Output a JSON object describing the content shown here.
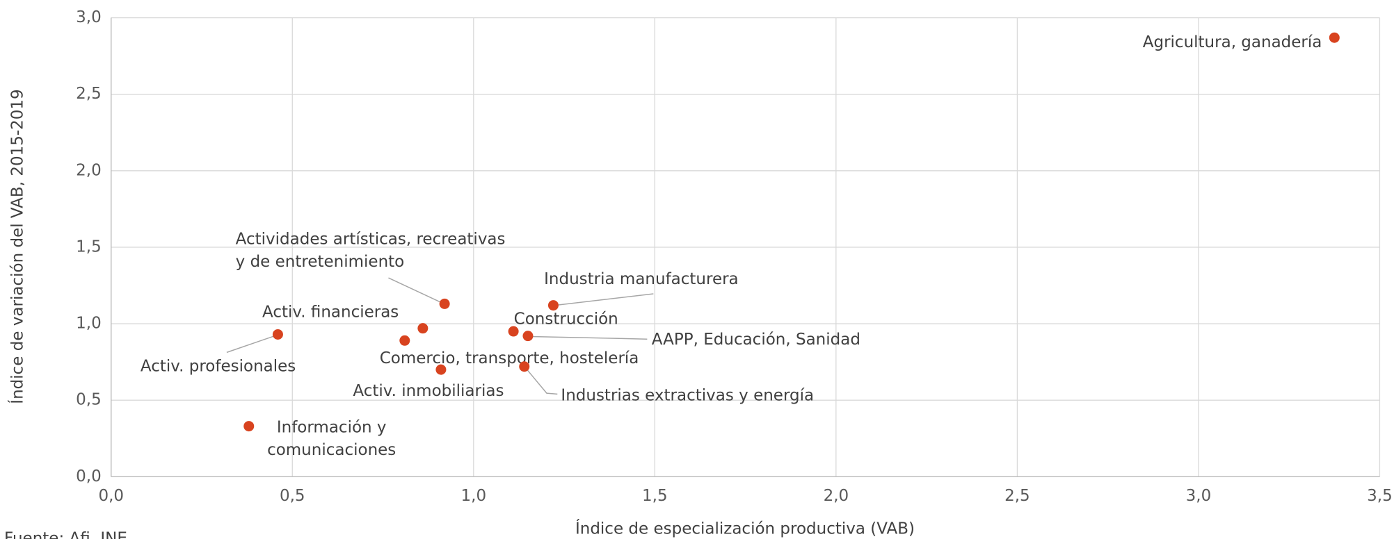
{
  "chart_data": {
    "type": "scatter",
    "x_label": "Índice de especialización productiva (VAB)",
    "y_label": "Índice de variación del VAB, 2015-2019",
    "source": "Fuente: Afi, INE",
    "color": "#d8431f",
    "grid": true,
    "xlim": [
      0,
      3.5
    ],
    "ylim": [
      0,
      3
    ],
    "xticks": [
      {
        "value": 0,
        "label": "0,0"
      },
      {
        "value": 0.5,
        "label": "0,5"
      },
      {
        "value": 1,
        "label": "1,0"
      },
      {
        "value": 1.5,
        "label": "1,5"
      },
      {
        "value": 2,
        "label": "2,0"
      },
      {
        "value": 2.5,
        "label": "2,5"
      },
      {
        "value": 3,
        "label": "3,0"
      },
      {
        "value": 3.5,
        "label": "3,5"
      }
    ],
    "yticks": [
      {
        "value": 0,
        "label": "0,0"
      },
      {
        "value": 0.5,
        "label": "0,5"
      },
      {
        "value": 1,
        "label": "1,0"
      },
      {
        "value": 1.5,
        "label": "1,5"
      },
      {
        "value": 2,
        "label": "2,0"
      },
      {
        "value": 2.5,
        "label": "2,5"
      },
      {
        "value": 3,
        "label": "3,0"
      }
    ],
    "points": [
      {
        "label": [
          "Agricultura, ganadería"
        ],
        "x": 3.375,
        "y": 2.87
      },
      {
        "label": [
          "Actividades artísticas, recreativas",
          "y de entretenimiento"
        ],
        "x": 0.92,
        "y": 1.13
      },
      {
        "label": [
          "Industria manufacturera"
        ],
        "x": 1.22,
        "y": 1.12
      },
      {
        "label": [
          "Activ. financieras"
        ],
        "x": 0.86,
        "y": 0.97
      },
      {
        "label": [
          "Activ. profesionales"
        ],
        "x": 0.46,
        "y": 0.93
      },
      {
        "label": [
          "Comercio, transporte, hostelería"
        ],
        "x": 0.81,
        "y": 0.89
      },
      {
        "label": [
          "Construcción"
        ],
        "x": 1.11,
        "y": 0.95
      },
      {
        "label": [
          "AAPP, Educación, Sanidad"
        ],
        "x": 1.15,
        "y": 0.92
      },
      {
        "label": [
          "Industrias extractivas y energía"
        ],
        "x": 1.14,
        "y": 0.72
      },
      {
        "label": [
          "Activ. inmobiliarias"
        ],
        "x": 0.91,
        "y": 0.7
      },
      {
        "label": [
          "Información y",
          "comunicaciones"
        ],
        "x": 0.38,
        "y": 0.33
      }
    ]
  }
}
